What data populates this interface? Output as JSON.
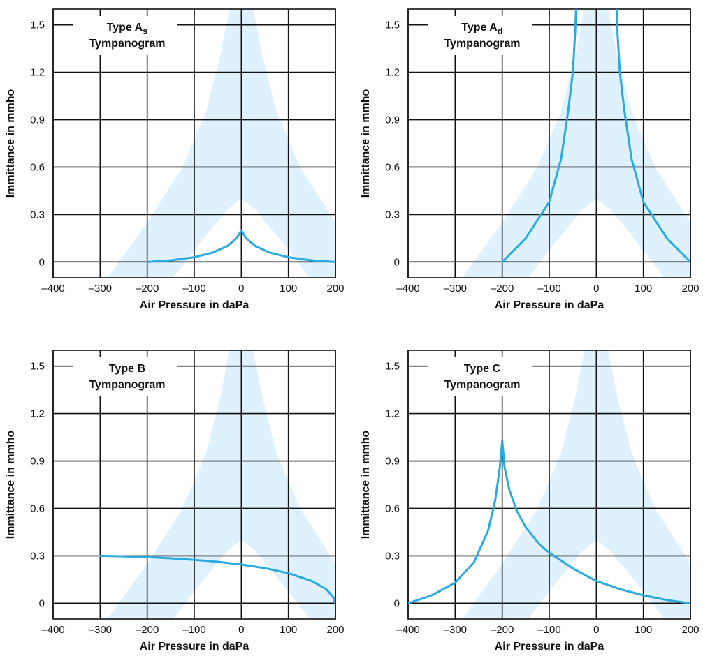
{
  "colors": {
    "curve": "#29abe2",
    "normal_band": "#dff1fc",
    "grid": "#111111",
    "background": "#ffffff"
  },
  "chart_data": [
    {
      "type": "line",
      "title_line1": "Type A",
      "title_subscript": "s",
      "title_line2": "Tympanogram",
      "xlabel": "Air Pressure in daPa",
      "ylabel": "Immittance in mmho",
      "xlim": [
        -400,
        200
      ],
      "ylim": [
        -0.1,
        1.6
      ],
      "xticks": [
        "-400",
        "-300",
        "-200",
        "-100",
        "0",
        "100",
        "200"
      ],
      "yticks": [
        "1.5",
        "1.2",
        "0.9",
        "0.6",
        "0.3",
        "0"
      ],
      "grid": true,
      "shaded_region": "normal range band (light blue)",
      "series": [
        {
          "x": [
            -200,
            -150,
            -100,
            -60,
            -30,
            -10,
            0,
            10,
            30,
            60,
            100,
            150,
            200
          ],
          "values": [
            0.0,
            0.01,
            0.03,
            0.06,
            0.1,
            0.15,
            0.2,
            0.15,
            0.1,
            0.06,
            0.03,
            0.01,
            0.0
          ]
        }
      ]
    },
    {
      "type": "line",
      "title_line1": "Type A",
      "title_subscript": "d",
      "title_line2": "Tympanogram",
      "xlabel": "Air Pressure in daPa",
      "ylabel": "Immittance in mmho",
      "xlim": [
        -400,
        200
      ],
      "ylim": [
        -0.1,
        1.6
      ],
      "xticks": [
        "-400",
        "-300",
        "-200",
        "-100",
        "0",
        "100",
        "200"
      ],
      "yticks": [
        "1.5",
        "1.2",
        "0.9",
        "0.6",
        "0.3",
        "0"
      ],
      "grid": true,
      "shaded_region": "normal range band (light blue)",
      "series": [
        {
          "x": [
            -200,
            -150,
            -100,
            -75,
            -60,
            -50,
            -45,
            -43
          ],
          "values": [
            0.0,
            0.15,
            0.38,
            0.65,
            0.95,
            1.2,
            1.45,
            1.6
          ]
        },
        {
          "x": [
            43,
            45,
            50,
            60,
            75,
            100,
            150,
            200
          ],
          "values": [
            1.6,
            1.45,
            1.2,
            0.95,
            0.65,
            0.38,
            0.15,
            0.0
          ]
        }
      ]
    },
    {
      "type": "line",
      "title_line1": "Type B",
      "title_subscript": "",
      "title_line2": "Tympanogram",
      "xlabel": "Air Pressure in daPa",
      "ylabel": "Immittance in mmho",
      "xlim": [
        -400,
        200
      ],
      "ylim": [
        -0.1,
        1.6
      ],
      "xticks": [
        "-400",
        "-300",
        "-200",
        "-100",
        "0",
        "100",
        "200"
      ],
      "yticks": [
        "1.5",
        "1.2",
        "0.9",
        "0.6",
        "0.3",
        "0"
      ],
      "grid": true,
      "shaded_region": "normal range band (light blue)",
      "series": [
        {
          "x": [
            -300,
            -250,
            -200,
            -150,
            -100,
            -50,
            0,
            50,
            100,
            150,
            180,
            195,
            200
          ],
          "values": [
            0.3,
            0.297,
            0.292,
            0.284,
            0.274,
            0.262,
            0.245,
            0.222,
            0.19,
            0.14,
            0.09,
            0.04,
            0.0
          ]
        }
      ]
    },
    {
      "type": "line",
      "title_line1": "Type C",
      "title_subscript": "",
      "title_line2": "Tympanogram",
      "xlabel": "Air Pressure in daPa",
      "ylabel": "Immittance in mmho",
      "xlim": [
        -400,
        200
      ],
      "ylim": [
        -0.1,
        1.6
      ],
      "xticks": [
        "-400",
        "-300",
        "-200",
        "-100",
        "0",
        "100",
        "200"
      ],
      "yticks": [
        "1.5",
        "1.2",
        "0.9",
        "0.6",
        "0.3",
        "0"
      ],
      "grid": true,
      "shaded_region": "normal range band (light blue)",
      "series": [
        {
          "x": [
            -400,
            -350,
            -300,
            -260,
            -230,
            -215,
            -205,
            -200,
            -195,
            -185,
            -170,
            -150,
            -120,
            -100,
            -50,
            0,
            50,
            100,
            150,
            200
          ],
          "values": [
            0.0,
            0.05,
            0.13,
            0.26,
            0.46,
            0.65,
            0.86,
            1.03,
            0.86,
            0.72,
            0.59,
            0.48,
            0.37,
            0.32,
            0.22,
            0.14,
            0.09,
            0.05,
            0.02,
            0.0
          ]
        }
      ]
    }
  ]
}
